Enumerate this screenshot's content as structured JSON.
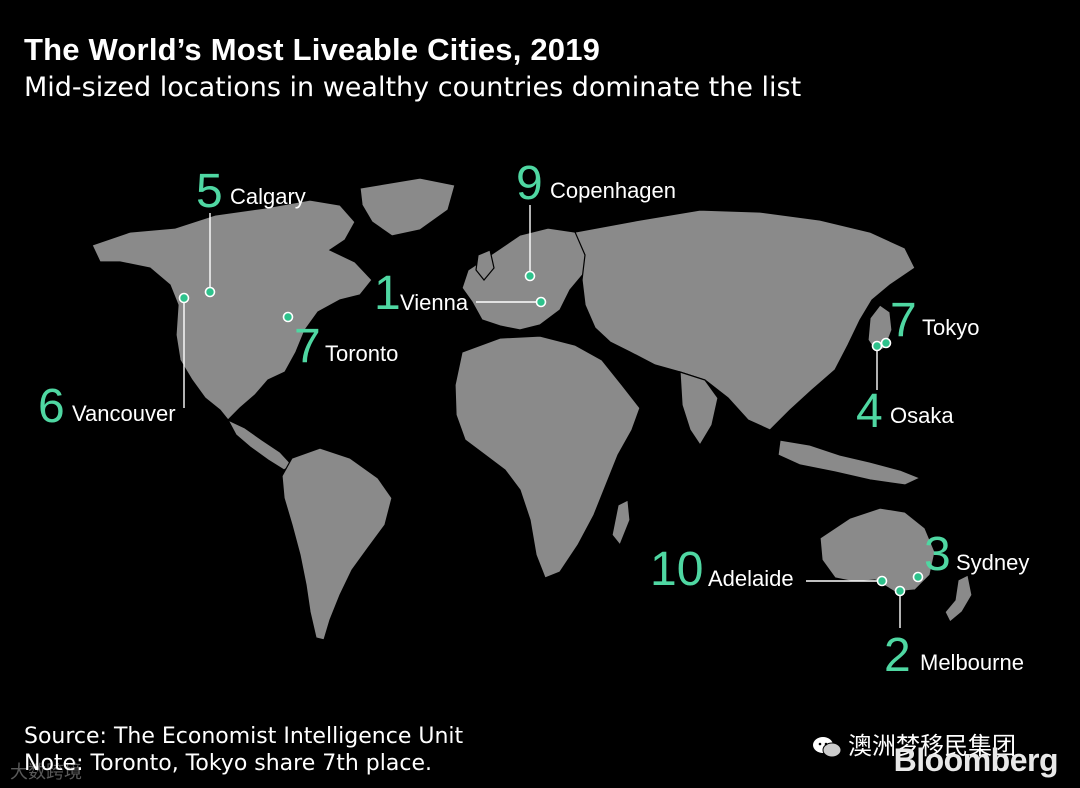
{
  "title": "The World’s Most Liveable Cities, 2019",
  "subtitle": "Mid-sized locations in wealthy countries dominate the list",
  "cities": [
    {
      "rank": "1",
      "name": "Vienna"
    },
    {
      "rank": "2",
      "name": "Melbourne"
    },
    {
      "rank": "3",
      "name": "Sydney"
    },
    {
      "rank": "4",
      "name": "Osaka"
    },
    {
      "rank": "5",
      "name": "Calgary"
    },
    {
      "rank": "6",
      "name": "Vancouver"
    },
    {
      "rank": "7",
      "name": "Toronto"
    },
    {
      "rank": "7",
      "name": "Tokyo"
    },
    {
      "rank": "9",
      "name": "Copenhagen"
    },
    {
      "rank": "10",
      "name": "Adelaide"
    }
  ],
  "source": "Source: The Economist Intelligence Unit",
  "note": "Note: Toronto, Tokyo share 7th place.",
  "brand": "Bloomberg",
  "wechat_label": "澳洲梦移民集团",
  "watermark": "大数跨境",
  "colors": {
    "accent": "#4fd7a2",
    "land": "#8a8a8a",
    "background": "#000000"
  }
}
